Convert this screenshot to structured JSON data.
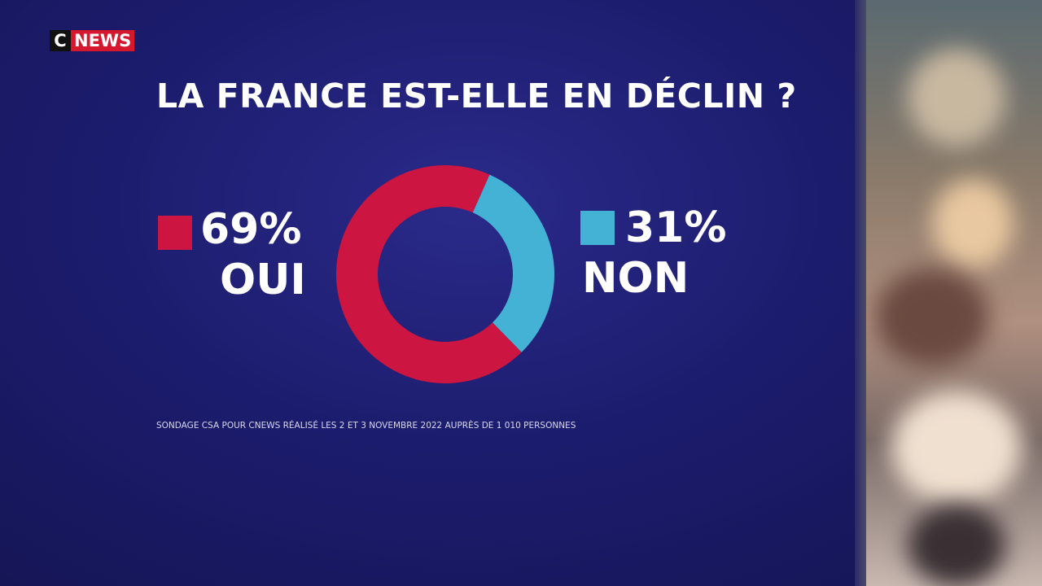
{
  "logo": {
    "c": "C",
    "news": "NEWS"
  },
  "chart_data": {
    "type": "pie",
    "donut": true,
    "title": "LA FRANCE EST-ELLE EN DÉCLIN ?",
    "categories": [
      "OUI",
      "NON"
    ],
    "values": [
      69,
      31
    ],
    "value_labels": [
      "69%",
      "31%"
    ],
    "colors": [
      "#cc1540",
      "#44b2d4"
    ],
    "source": "SONDAGE CSA POUR CNEWS RÉALISÉ LES 2 ET 3 NOVEMBRE 2022 AUPRÈS DE 1 010 PERSONNES"
  }
}
